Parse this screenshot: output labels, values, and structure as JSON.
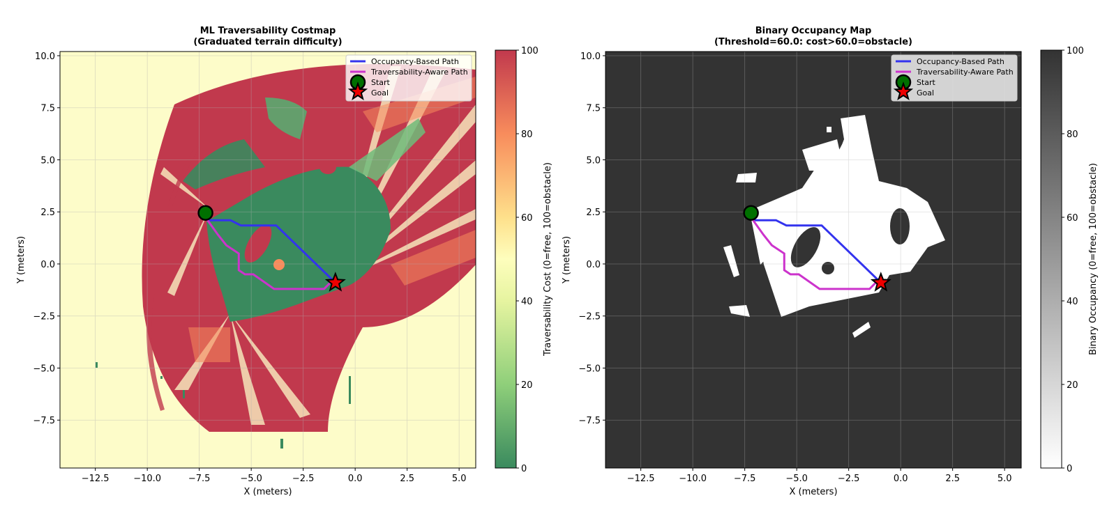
{
  "chart_data": [
    {
      "type": "heatmap",
      "title_line1": "ML Traversability Costmap",
      "title_line2": "(Graduated terrain difficulty)",
      "xlabel": "X (meters)",
      "ylabel": "Y (meters)",
      "xlim": [
        -14.2,
        5.8
      ],
      "ylim": [
        -9.8,
        10.2
      ],
      "xticks": [
        -12.5,
        -10.0,
        -7.5,
        -5.0,
        -2.5,
        0.0,
        2.5,
        5.0
      ],
      "xtick_labels": [
        "−12.5",
        "−10.0",
        "−7.5",
        "−5.0",
        "−2.5",
        "0.0",
        "2.5",
        "5.0"
      ],
      "yticks": [
        10.0,
        7.5,
        5.0,
        2.5,
        0.0,
        -2.5,
        -5.0,
        -7.5
      ],
      "ytick_labels": [
        "10.0",
        "7.5",
        "5.0",
        "2.5",
        "0.0",
        "−2.5",
        "−5.0",
        "−7.5"
      ],
      "grid": true,
      "colormap": "RdYlGn_r",
      "colorbar": {
        "label": "Traversability Cost (0=free, 100=obstacle)",
        "range": [
          0,
          100
        ],
        "ticks": [
          0,
          20,
          40,
          60,
          80,
          100
        ],
        "tick_labels": [
          "0",
          "20",
          "40",
          "60",
          "80",
          "100"
        ]
      },
      "legend_placement": "upper right",
      "legend": [
        {
          "label": "Occupancy-Based Path",
          "color": "#3333ee"
        },
        {
          "label": "Traversability-Aware Path",
          "color": "#cc33cc"
        },
        {
          "label": "Start",
          "color": "#007000"
        },
        {
          "label": "Goal",
          "color": "#ee0000"
        }
      ],
      "colors": {
        "free": "#3a8a5e",
        "obstacle": "#c1394d",
        "unknown": "#fdfcc9",
        "mid": "#f46d43"
      },
      "series": [
        {
          "name": "Occupancy-Based Path",
          "x": [
            -7.1,
            -6.0,
            -5.5,
            -3.8,
            -0.95
          ],
          "y": [
            2.1,
            2.1,
            1.85,
            1.85,
            -0.9
          ]
        },
        {
          "name": "Traversability-Aware Path",
          "x": [
            -7.1,
            -6.6,
            -6.2,
            -5.6,
            -5.6,
            -5.3,
            -4.9,
            -3.9,
            -1.5,
            -1.2,
            -0.95
          ],
          "y": [
            2.1,
            1.4,
            0.9,
            0.5,
            -0.3,
            -0.5,
            -0.5,
            -1.2,
            -1.2,
            -0.9,
            -0.9
          ]
        }
      ],
      "start": {
        "name": "Start",
        "x": -7.2,
        "y": 2.45
      },
      "goal": {
        "name": "Goal",
        "x": -0.95,
        "y": -0.9
      }
    },
    {
      "type": "heatmap",
      "title_line1": "Binary Occupancy Map",
      "title_line2": "(Threshold=60.0: cost>60.0=obstacle)",
      "xlabel": "X (meters)",
      "ylabel": "Y (meters)",
      "xlim": [
        -14.2,
        5.8
      ],
      "ylim": [
        -9.8,
        10.2
      ],
      "xticks": [
        -12.5,
        -10.0,
        -7.5,
        -5.0,
        -2.5,
        0.0,
        2.5,
        5.0
      ],
      "xtick_labels": [
        "−12.5",
        "−10.0",
        "−7.5",
        "−5.0",
        "−2.5",
        "0.0",
        "2.5",
        "5.0"
      ],
      "yticks": [
        10.0,
        7.5,
        5.0,
        2.5,
        0.0,
        -2.5,
        -5.0,
        -7.5
      ],
      "ytick_labels": [
        "10.0",
        "7.5",
        "5.0",
        "2.5",
        "0.0",
        "−2.5",
        "−5.0",
        "−7.5"
      ],
      "grid": true,
      "colormap": "gray_r",
      "colorbar": {
        "label": "Binary Occupancy (0=free, 100=obstacle)",
        "range": [
          0,
          100
        ],
        "ticks": [
          0,
          20,
          40,
          60,
          80,
          100
        ],
        "tick_labels": [
          "0",
          "20",
          "40",
          "60",
          "80",
          "100"
        ]
      },
      "legend_placement": "upper right",
      "legend": [
        {
          "label": "Occupancy-Based Path",
          "color": "#3333ee"
        },
        {
          "label": "Traversability-Aware Path",
          "color": "#cc33cc"
        },
        {
          "label": "Start",
          "color": "#007000"
        },
        {
          "label": "Goal",
          "color": "#ee0000"
        }
      ],
      "colors": {
        "free": "#ffffff",
        "obstacle": "#333333"
      },
      "series": [
        {
          "name": "Occupancy-Based Path",
          "x": [
            -7.1,
            -6.0,
            -5.5,
            -3.8,
            -0.95
          ],
          "y": [
            2.1,
            2.1,
            1.85,
            1.85,
            -0.9
          ]
        },
        {
          "name": "Traversability-Aware Path",
          "x": [
            -7.1,
            -6.6,
            -6.2,
            -5.6,
            -5.6,
            -5.3,
            -4.9,
            -3.9,
            -1.5,
            -1.2,
            -0.95
          ],
          "y": [
            2.1,
            1.4,
            0.9,
            0.5,
            -0.3,
            -0.5,
            -0.5,
            -1.2,
            -1.2,
            -0.9,
            -0.9
          ]
        }
      ],
      "start": {
        "name": "Start",
        "x": -7.2,
        "y": 2.45
      },
      "goal": {
        "name": "Goal",
        "x": -0.95,
        "y": -0.9
      }
    }
  ]
}
